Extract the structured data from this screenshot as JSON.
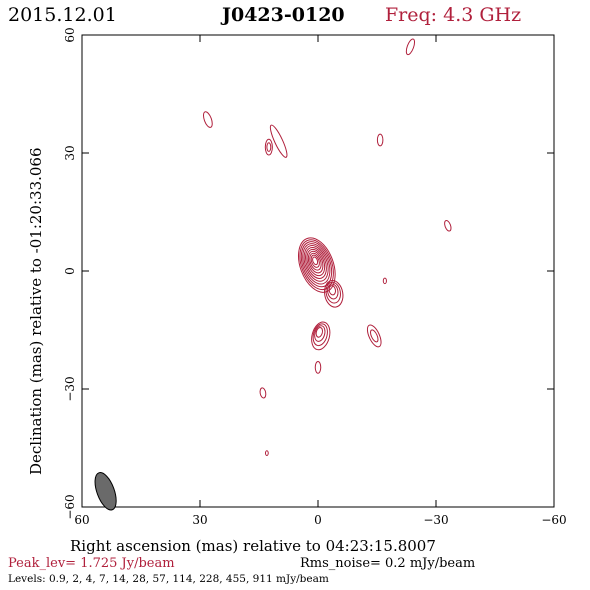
{
  "header": {
    "date": "2015.12.01",
    "source": "J0423-0120",
    "freq": "Freq: 4.3 GHz"
  },
  "chart_data": {
    "type": "contour",
    "xlabel": "Right ascension (mas) relative to 04:23:15.8007",
    "ylabel": "Declination (mas) relative to -01:20:33.066",
    "xlim": [
      60,
      -60
    ],
    "ylim": [
      -60,
      60
    ],
    "x_ticks": [
      60,
      30,
      0,
      -30,
      -60
    ],
    "y_ticks": [
      60,
      30,
      0,
      -30,
      -60
    ],
    "x_tick_labels": [
      "60",
      "30",
      "0",
      "−30",
      "−60"
    ],
    "y_tick_labels": [
      "60",
      "30",
      "0",
      "−30",
      "−60"
    ],
    "peak_label": "Peak_lev=  1.725 Jy/beam",
    "rms_label": "Rms_noise=  0.2 mJy/beam",
    "levels_label": "Levels: 0.9,   2,   4,   7,  14,  28,  57, 114, 228, 455, 911 mJy/beam",
    "levels_mJy": [
      0.9,
      2,
      4,
      7,
      14,
      28,
      57,
      114,
      228,
      455,
      911
    ],
    "contour_color": "#b0203c",
    "beam": {
      "x": 54,
      "y": -56,
      "major": 5.0,
      "minor": 2.2,
      "pa": 20,
      "color": "#6a6a6a"
    },
    "core": {
      "x": 0.3,
      "y": 1.5
    },
    "components": [
      {
        "x": 0.3,
        "y": 1.5,
        "sx": 4.2,
        "sy": 7.2,
        "pa": 20,
        "levels": 11
      },
      {
        "x": -4.0,
        "y": -5.8,
        "sx": 2.3,
        "sy": 3.4,
        "pa": 10,
        "levels": 4
      },
      {
        "x": -0.7,
        "y": -16.5,
        "sx": 2.2,
        "sy": 3.6,
        "pa": -15,
        "levels": 4
      }
    ],
    "blobs": [
      {
        "x": -23.5,
        "y": 57.0,
        "sx": 0.8,
        "sy": 2.1,
        "pa": -20
      },
      {
        "x": 28.0,
        "y": 38.5,
        "sx": 0.9,
        "sy": 2.1,
        "pa": 20
      },
      {
        "x": 10.0,
        "y": 33.0,
        "sx": 1.0,
        "sy": 4.5,
        "pa": 25
      },
      {
        "x": 12.5,
        "y": 31.5,
        "sx": 0.9,
        "sy": 2.0,
        "pa": 0,
        "levels": 2
      },
      {
        "x": -15.8,
        "y": 33.3,
        "sx": 0.7,
        "sy": 1.5,
        "pa": 0
      },
      {
        "x": -33.0,
        "y": 11.5,
        "sx": 0.7,
        "sy": 1.4,
        "pa": 20
      },
      {
        "x": -17.0,
        "y": -2.5,
        "sx": 0.4,
        "sy": 0.7,
        "pa": 0
      },
      {
        "x": -14.3,
        "y": -16.5,
        "sx": 1.3,
        "sy": 3.0,
        "pa": 25,
        "levels": 2
      },
      {
        "x": 0.0,
        "y": -24.5,
        "sx": 0.7,
        "sy": 1.5,
        "pa": 0
      },
      {
        "x": 14.0,
        "y": -31.0,
        "sx": 0.7,
        "sy": 1.3,
        "pa": 10
      },
      {
        "x": 13.0,
        "y": -46.3,
        "sx": 0.35,
        "sy": 0.6,
        "pa": 0
      }
    ]
  }
}
